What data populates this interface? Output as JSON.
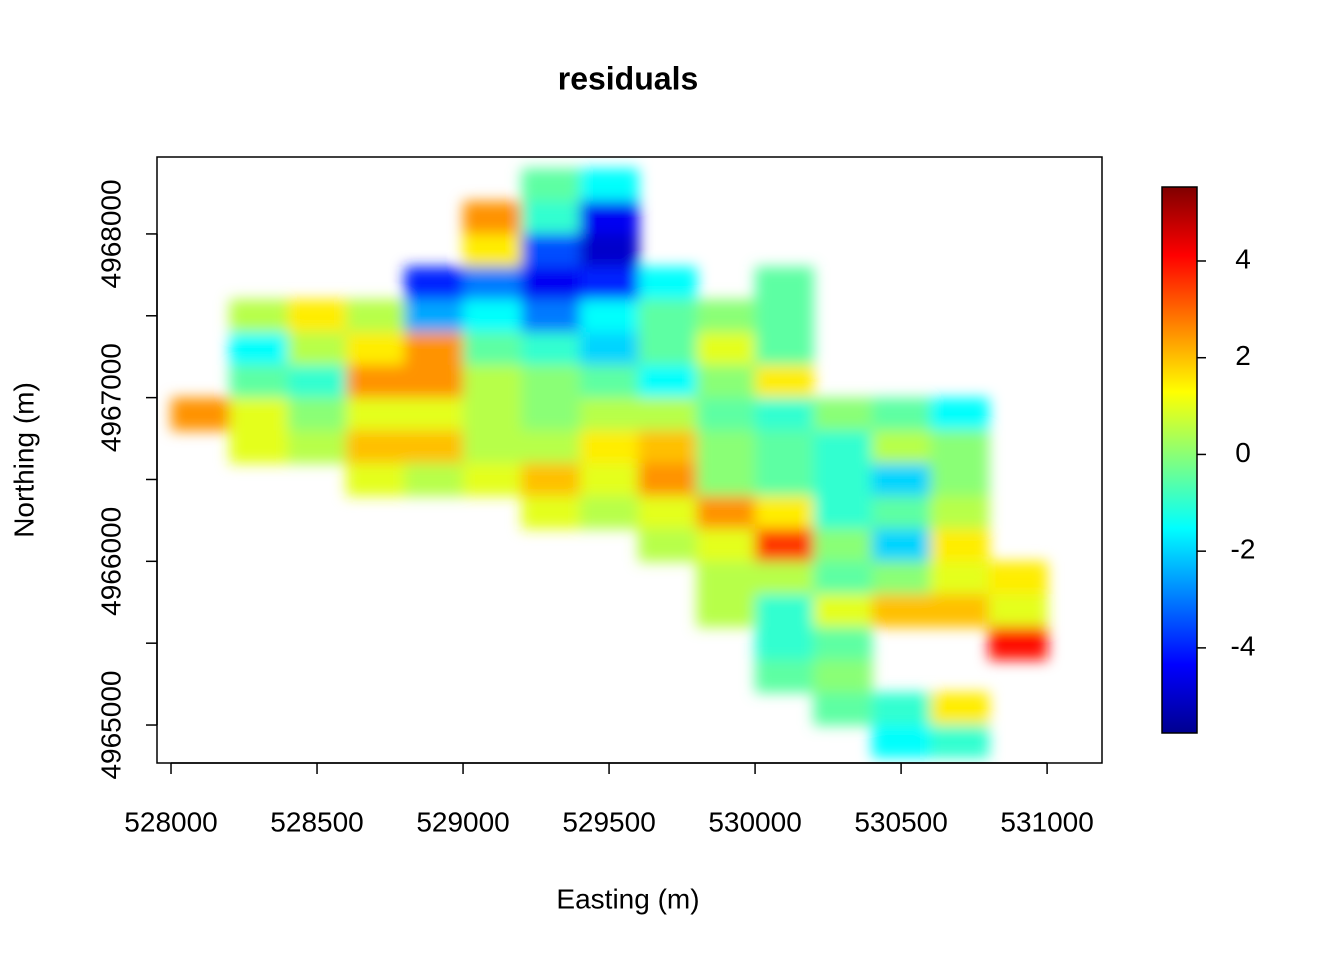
{
  "chart_data": {
    "type": "heatmap",
    "title": "residuals",
    "xlabel": "Easting (m)",
    "ylabel": "Northing (m)",
    "x": [
      528100,
      528300,
      528500,
      528700,
      528900,
      529100,
      529300,
      529500,
      529700,
      529900,
      530100,
      530300,
      530500,
      530700,
      530900,
      531100
    ],
    "y": [
      4968300,
      4968100,
      4967900,
      4967700,
      4967500,
      4967300,
      4967100,
      4966900,
      4966700,
      4966500,
      4966300,
      4966100,
      4965900,
      4965700,
      4965500,
      4965300,
      4965100,
      4964900
    ],
    "cell_size": 200,
    "values": [
      [
        null,
        null,
        null,
        null,
        null,
        null,
        -0.5,
        -1.5,
        null,
        null,
        null,
        null,
        null,
        null,
        null,
        null
      ],
      [
        null,
        null,
        null,
        null,
        null,
        2.5,
        -1,
        -4.5,
        null,
        null,
        null,
        null,
        null,
        null,
        null,
        null
      ],
      [
        null,
        null,
        null,
        null,
        null,
        1.5,
        -3.5,
        -5,
        null,
        null,
        null,
        null,
        null,
        null,
        null,
        null
      ],
      [
        null,
        null,
        null,
        null,
        -4,
        -3,
        -4.5,
        -4,
        -1.5,
        null,
        -0.5,
        null,
        null,
        null,
        null,
        null
      ],
      [
        null,
        0.5,
        1.5,
        0.5,
        -2.5,
        -1.5,
        -3,
        -1.5,
        -0.5,
        0,
        -0.5,
        null,
        null,
        null,
        null,
        null
      ],
      [
        null,
        -1.5,
        0.5,
        1.5,
        2.5,
        -0.5,
        -1,
        -2,
        -0.5,
        1,
        -0.5,
        null,
        null,
        null,
        null,
        null
      ],
      [
        null,
        -0.5,
        -1,
        2.5,
        2.5,
        0.5,
        0,
        -0.5,
        -1.5,
        0,
        1.5,
        null,
        null,
        null,
        null,
        null
      ],
      [
        2.5,
        1,
        0,
        1,
        1,
        0.5,
        0,
        0.5,
        0.5,
        -0.5,
        -1,
        0,
        -0.5,
        -1.5,
        null,
        null
      ],
      [
        null,
        1,
        0.5,
        2,
        2,
        0.5,
        0.5,
        1.5,
        2,
        0,
        -0.5,
        -1,
        0.5,
        0,
        null,
        null
      ],
      [
        null,
        null,
        null,
        1,
        0.5,
        1,
        2,
        1,
        2.5,
        0,
        -0.5,
        -1,
        -2,
        0,
        null,
        null
      ],
      [
        null,
        null,
        null,
        null,
        null,
        null,
        1,
        0.5,
        1,
        2.5,
        1.5,
        -1,
        -0.5,
        0.5,
        null,
        null
      ],
      [
        null,
        null,
        null,
        null,
        null,
        null,
        null,
        null,
        0.5,
        1,
        3.5,
        0,
        -2,
        1.5,
        null,
        null
      ],
      [
        null,
        null,
        null,
        null,
        null,
        null,
        null,
        null,
        null,
        0.5,
        0.5,
        -0.5,
        0,
        1,
        1.5,
        null
      ],
      [
        null,
        null,
        null,
        null,
        null,
        null,
        null,
        null,
        null,
        0.5,
        -1,
        1,
        2,
        2,
        1,
        null
      ],
      [
        null,
        null,
        null,
        null,
        null,
        null,
        null,
        null,
        null,
        null,
        -1,
        -0.5,
        null,
        null,
        4,
        null
      ],
      [
        null,
        null,
        null,
        null,
        null,
        null,
        null,
        null,
        null,
        null,
        -0.5,
        0,
        null,
        null,
        null,
        null
      ],
      [
        null,
        null,
        null,
        null,
        null,
        null,
        null,
        null,
        null,
        null,
        null,
        -0.5,
        -1,
        1.5,
        null,
        null
      ],
      [
        null,
        null,
        null,
        null,
        null,
        null,
        null,
        null,
        null,
        null,
        null,
        null,
        -1.5,
        -1,
        null,
        null
      ]
    ],
    "xlim": [
      527952,
      531188
    ],
    "ylim": [
      4964768,
      4968470
    ],
    "xticks": [
      528000,
      528500,
      529000,
      529500,
      530000,
      530500,
      531000
    ],
    "yticks": [
      4965000,
      4966000,
      4967000,
      4968000
    ],
    "yticks_minor": [
      4965500,
      4966500,
      4967500
    ],
    "zlim": [
      -5.76,
      5.53
    ],
    "zticks": [
      -4,
      -2,
      0,
      2,
      4
    ],
    "colors": [
      "#00008F",
      "#0000FF",
      "#0080FF",
      "#00FFFF",
      "#80FF80",
      "#FFFF00",
      "#FF8000",
      "#FF0000",
      "#800000"
    ]
  }
}
